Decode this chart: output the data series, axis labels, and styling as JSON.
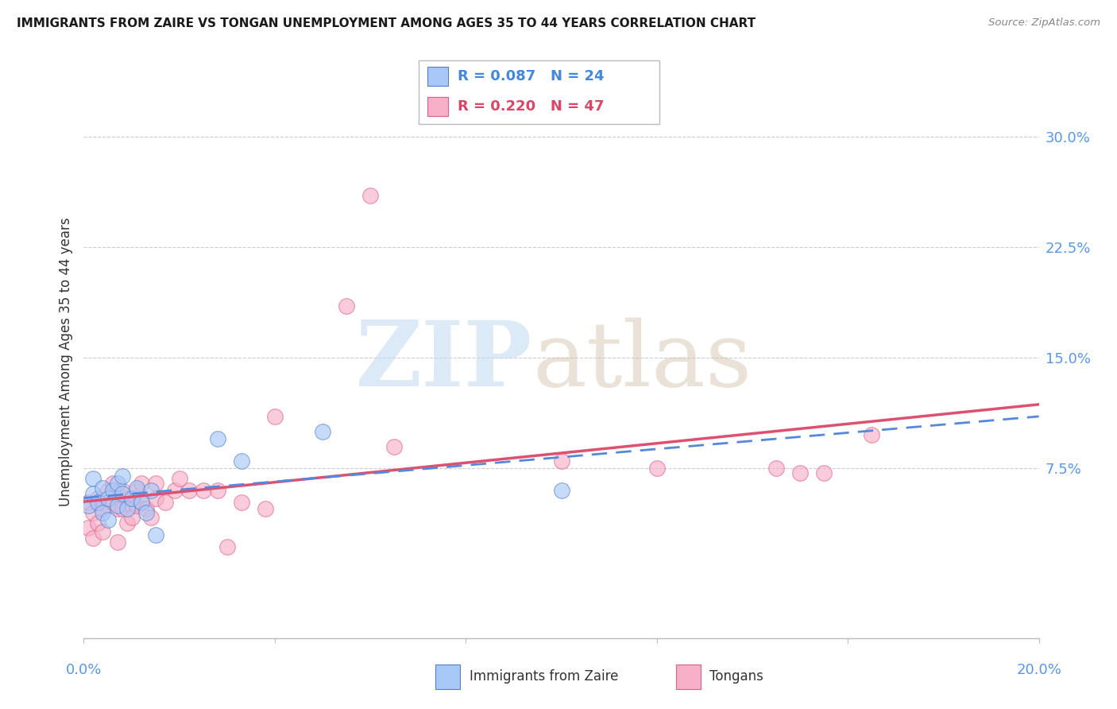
{
  "title": "IMMIGRANTS FROM ZAIRE VS TONGAN UNEMPLOYMENT AMONG AGES 35 TO 44 YEARS CORRELATION CHART",
  "source": "Source: ZipAtlas.com",
  "ylabel": "Unemployment Among Ages 35 to 44 years",
  "right_ytick_labels": [
    "7.5%",
    "15.0%",
    "22.5%",
    "30.0%"
  ],
  "right_ytick_values": [
    0.075,
    0.15,
    0.225,
    0.3
  ],
  "xlim": [
    0.0,
    0.2
  ],
  "ylim": [
    -0.04,
    0.335
  ],
  "blue_color": "#a8c8f8",
  "pink_color": "#f8b0c8",
  "blue_edge": "#5080d0",
  "pink_edge": "#e06080",
  "trend_blue_color": "#5588dd",
  "trend_pink_color": "#dd5070",
  "blue_scatter_x": [
    0.001,
    0.002,
    0.002,
    0.003,
    0.004,
    0.004,
    0.005,
    0.005,
    0.006,
    0.007,
    0.007,
    0.008,
    0.008,
    0.009,
    0.01,
    0.011,
    0.012,
    0.013,
    0.014,
    0.015,
    0.028,
    0.033,
    0.05,
    0.1
  ],
  "blue_scatter_y": [
    0.05,
    0.068,
    0.058,
    0.052,
    0.062,
    0.045,
    0.055,
    0.04,
    0.06,
    0.065,
    0.05,
    0.07,
    0.058,
    0.048,
    0.055,
    0.062,
    0.052,
    0.045,
    0.06,
    0.03,
    0.095,
    0.08,
    0.1,
    0.06
  ],
  "pink_scatter_x": [
    0.001,
    0.001,
    0.002,
    0.002,
    0.003,
    0.003,
    0.004,
    0.004,
    0.005,
    0.005,
    0.006,
    0.006,
    0.007,
    0.007,
    0.008,
    0.008,
    0.009,
    0.009,
    0.01,
    0.01,
    0.011,
    0.011,
    0.012,
    0.012,
    0.013,
    0.014,
    0.015,
    0.015,
    0.017,
    0.019,
    0.022,
    0.025,
    0.028,
    0.03,
    0.033,
    0.038,
    0.04,
    0.055,
    0.06,
    0.065,
    0.02,
    0.1,
    0.12,
    0.145,
    0.15,
    0.155,
    0.165
  ],
  "pink_scatter_y": [
    0.052,
    0.035,
    0.028,
    0.045,
    0.055,
    0.038,
    0.048,
    0.032,
    0.06,
    0.05,
    0.065,
    0.052,
    0.048,
    0.025,
    0.06,
    0.048,
    0.055,
    0.038,
    0.05,
    0.042,
    0.06,
    0.05,
    0.065,
    0.052,
    0.048,
    0.042,
    0.055,
    0.065,
    0.052,
    0.06,
    0.06,
    0.06,
    0.06,
    0.022,
    0.052,
    0.048,
    0.11,
    0.185,
    0.26,
    0.09,
    0.068,
    0.08,
    0.075,
    0.075,
    0.072,
    0.072,
    0.098
  ],
  "grid_color": "#cccccc",
  "spine_color": "#bbbbbb"
}
